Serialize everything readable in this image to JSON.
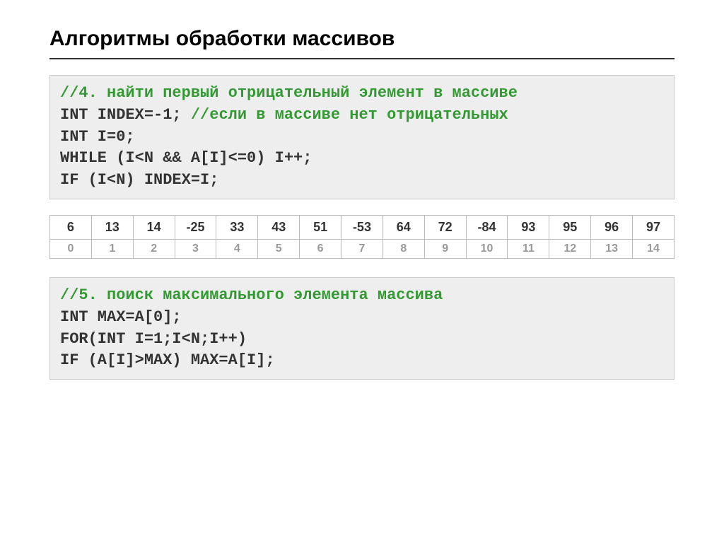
{
  "title": "Алгоритмы обработки массивов",
  "code1": {
    "line1": "//4. найти первый отрицательный элемент в массиве",
    "line2a": "INT INDEX=-1; ",
    "line2b": "//если в массиве нет отрицательных",
    "line3": "INT I=0;",
    "line4": "WHILE (I<N && A[I]<=0) I++;",
    "line5": "IF (I<N) INDEX=I;"
  },
  "array": {
    "values": [
      "6",
      "13",
      "14",
      "-25",
      "33",
      "43",
      "51",
      "-53",
      "64",
      "72",
      "-84",
      "93",
      "95",
      "96",
      "97"
    ],
    "indices": [
      "0",
      "1",
      "2",
      "3",
      "4",
      "5",
      "6",
      "7",
      "8",
      "9",
      "10",
      "11",
      "12",
      "13",
      "14"
    ]
  },
  "code2": {
    "line1": "//5. поиск максимального элемента массива",
    "line2": "INT MAX=A[0];",
    "line3": "FOR(INT I=1;I<N;I++)",
    "line4": "IF (A[I]>MAX) MAX=A[I];"
  },
  "colors": {
    "comment": "#339933",
    "code_bg": "#eeeeee",
    "text": "#333333",
    "index": "#999999",
    "border": "#bbbbbb"
  }
}
